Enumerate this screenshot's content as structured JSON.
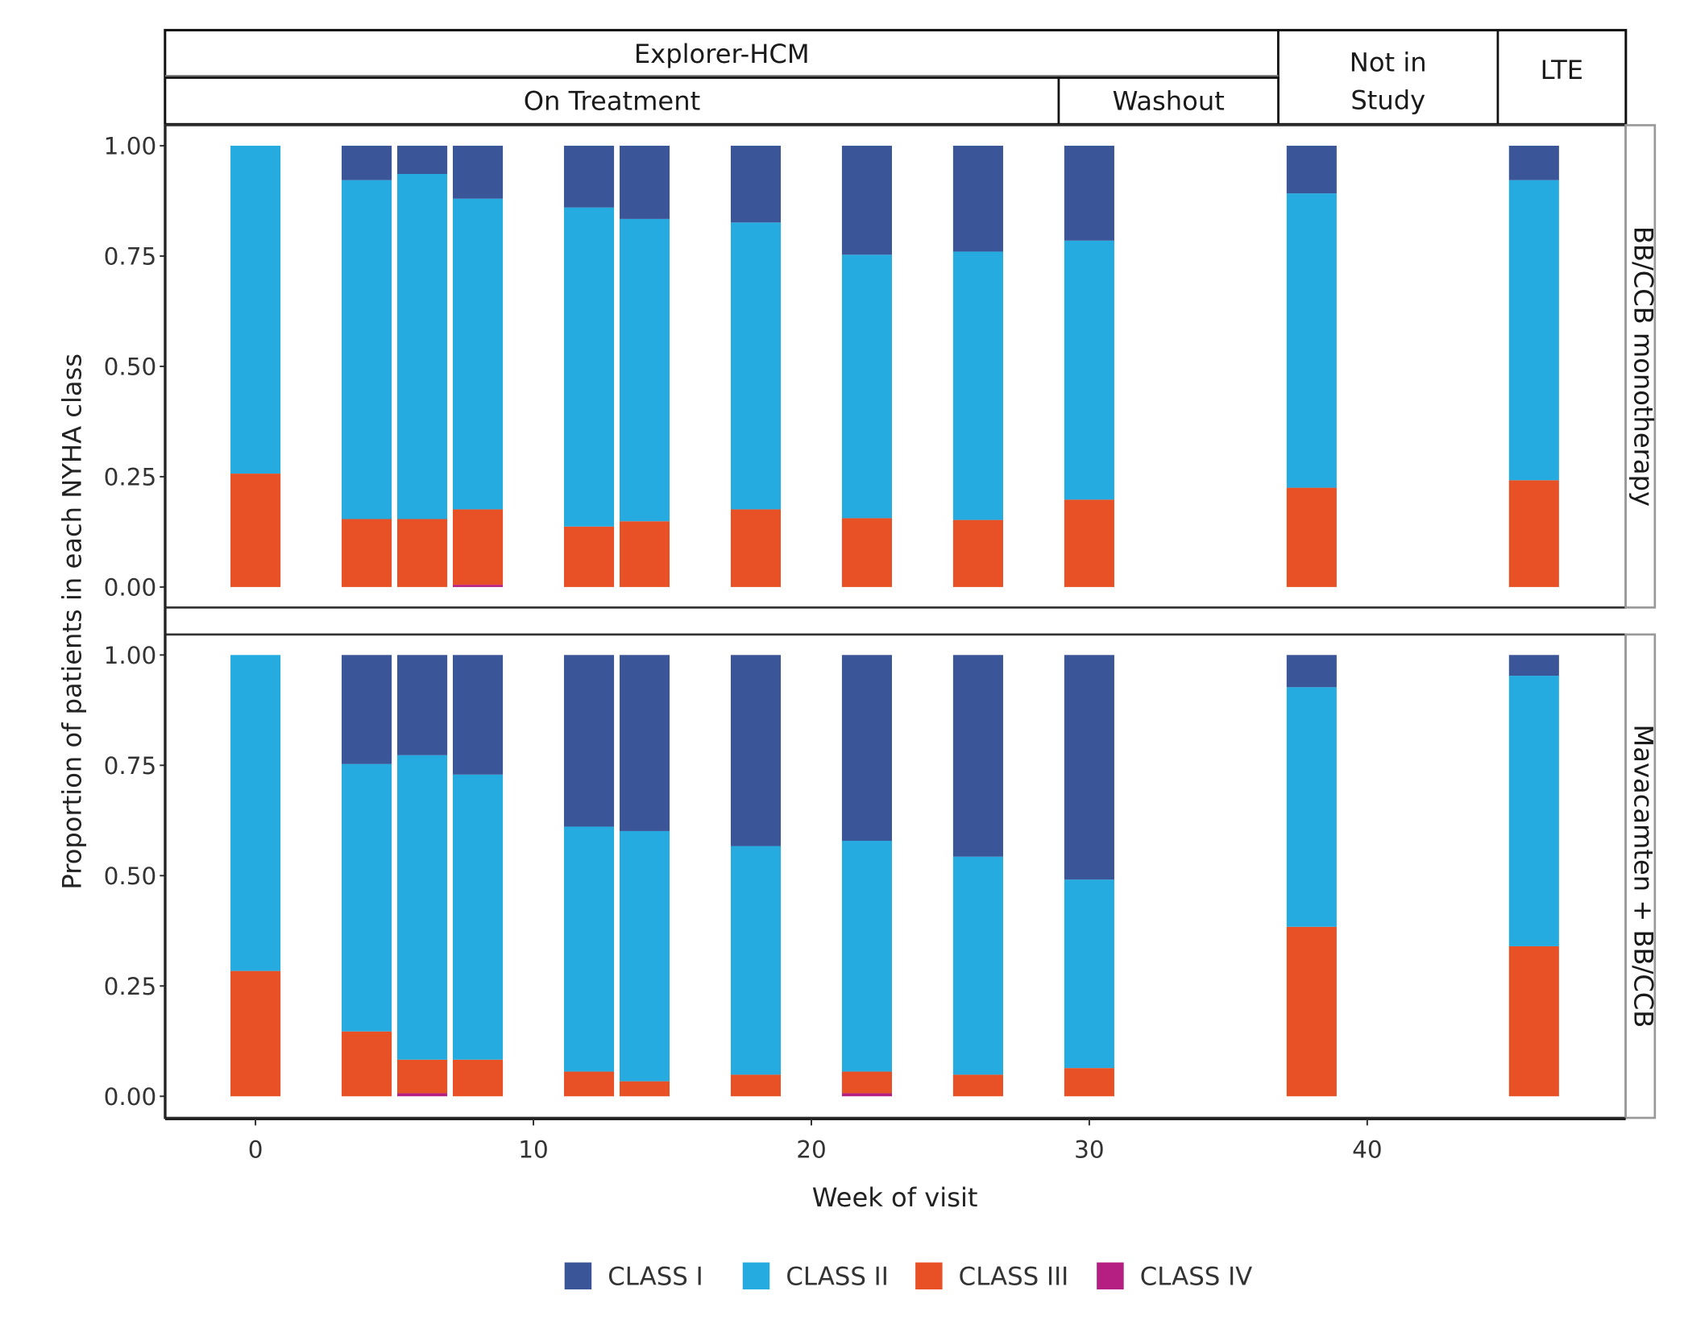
{
  "chart_data": {
    "type": "bar",
    "stacked": true,
    "xlabel": "Week of visit",
    "ylabel": "Proportion of patients in each NYHA class",
    "xlim": [
      -3.25,
      49.3
    ],
    "ylim": [
      0,
      1
    ],
    "x_ticks": [
      "0",
      "10",
      "20",
      "30",
      "40"
    ],
    "y_ticks": [
      "0.00",
      "0.25",
      "0.50",
      "0.75",
      "1.00"
    ],
    "legend_position": "bottom",
    "legend": [
      "CLASS I",
      "CLASS II",
      "CLASS III",
      "CLASS IV"
    ],
    "colors": {
      "CLASS I": "#3a5598",
      "CLASS II": "#25abe0",
      "CLASS III": "#e85125",
      "CLASS IV": "#b61f82"
    },
    "top_strips": {
      "row1": [
        {
          "label": "Explorer-HCM",
          "from": -3.25,
          "to": 36.8
        },
        {
          "label": "Not in Study",
          "from": 36.8,
          "to": 44.7
        },
        {
          "label": "LTE",
          "from": 44.7,
          "to": 49.3
        }
      ],
      "row2": [
        {
          "label": "On Treatment",
          "from": -3.25,
          "to": 28.9
        },
        {
          "label": "Washout",
          "from": 28.9,
          "to": 36.8
        }
      ]
    },
    "x": [
      0,
      4,
      6,
      8,
      12,
      14,
      18,
      22,
      26,
      30,
      38,
      46
    ],
    "panels": [
      {
        "label": "BB/CCB monotherapy",
        "series": [
          {
            "name": "CLASS IV",
            "values": [
              0,
              0,
              0,
              0.005,
              0,
              0,
              0,
              0,
              0,
              0,
              0,
              0
            ]
          },
          {
            "name": "CLASS III",
            "values": [
              0.257,
              0.154,
              0.154,
              0.171,
              0.137,
              0.149,
              0.176,
              0.156,
              0.152,
              0.198,
              0.225,
              0.242
            ]
          },
          {
            "name": "CLASS II",
            "values": [
              0.743,
              0.768,
              0.782,
              0.704,
              0.723,
              0.685,
              0.65,
              0.597,
              0.608,
              0.587,
              0.667,
              0.68
            ]
          },
          {
            "name": "CLASS I",
            "values": [
              0,
              0.078,
              0.064,
              0.12,
              0.14,
              0.166,
              0.174,
              0.247,
              0.24,
              0.215,
              0.108,
              0.078
            ]
          }
        ]
      },
      {
        "label": "Mavacamten + BB/CCB",
        "series": [
          {
            "name": "CLASS IV",
            "values": [
              0,
              0,
              0.007,
              0,
              0,
              0,
              0,
              0.007,
              0,
              0,
              0,
              0
            ]
          },
          {
            "name": "CLASS III",
            "values": [
              0.284,
              0.147,
              0.076,
              0.083,
              0.056,
              0.034,
              0.049,
              0.049,
              0.049,
              0.064,
              0.384,
              0.34
            ]
          },
          {
            "name": "CLASS II",
            "values": [
              0.716,
              0.606,
              0.69,
              0.646,
              0.555,
              0.567,
              0.518,
              0.523,
              0.494,
              0.427,
              0.543,
              0.613
            ]
          },
          {
            "name": "CLASS I",
            "values": [
              0,
              0.247,
              0.227,
              0.271,
              0.389,
              0.399,
              0.433,
              0.421,
              0.457,
              0.509,
              0.073,
              0.047
            ]
          }
        ]
      }
    ]
  }
}
